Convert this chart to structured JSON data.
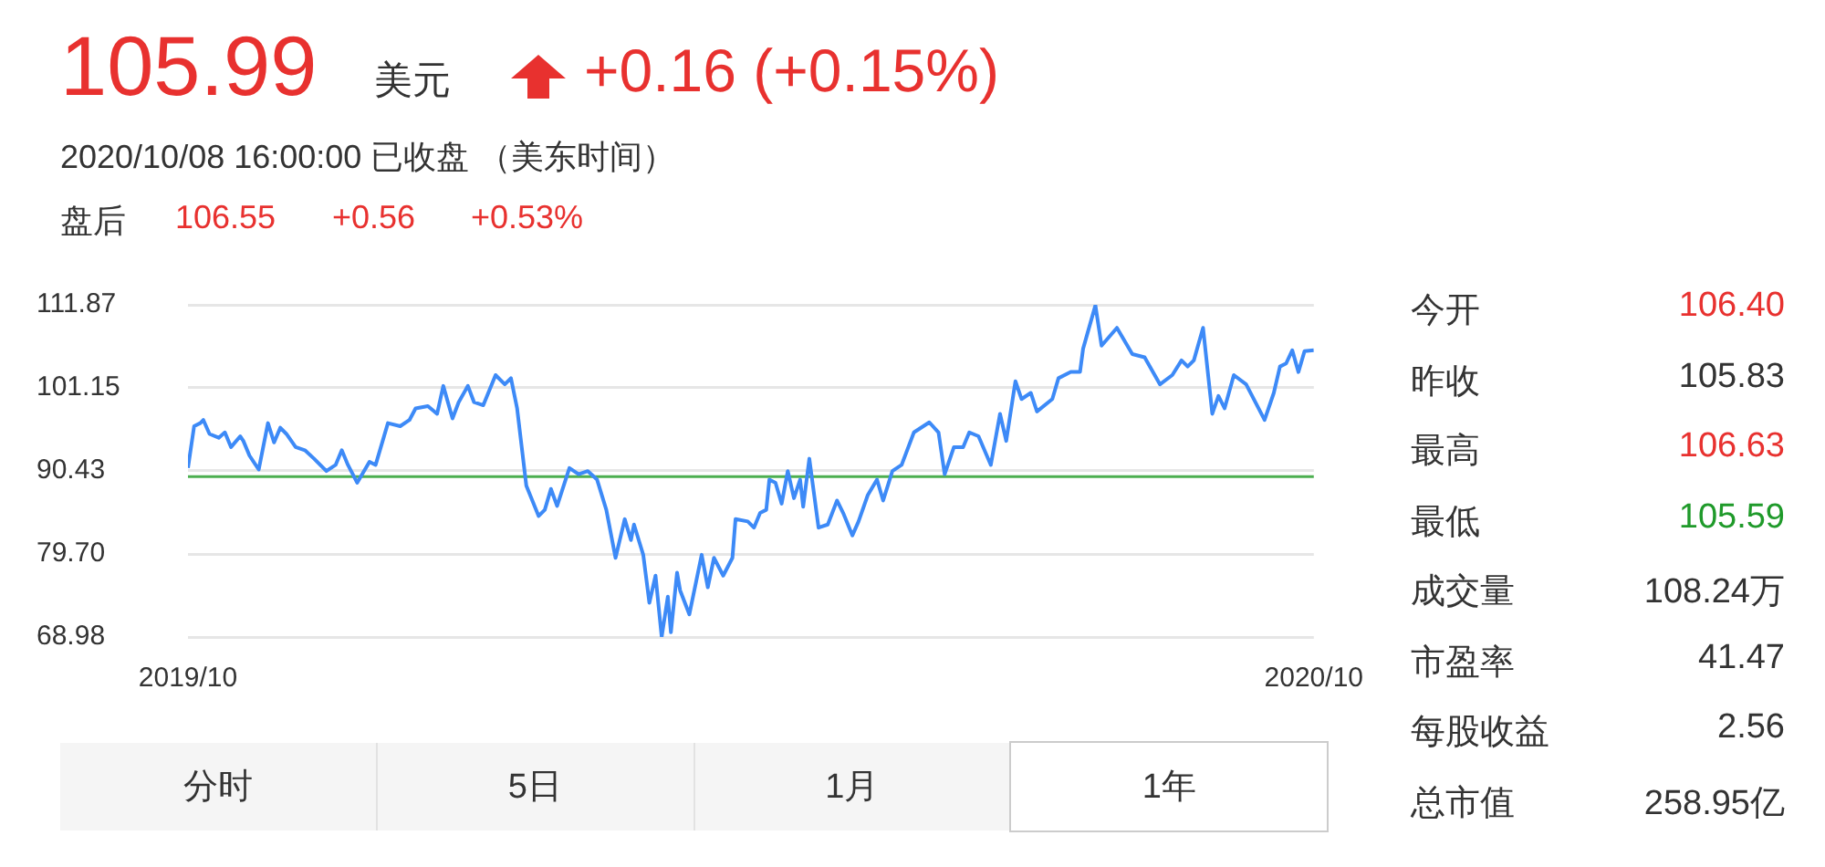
{
  "chart_data": {
    "type": "line",
    "title": "105.99",
    "subtitle": "2020/10/08 16:00:00  已收盘 （美东时间）",
    "annotations": [
      "美元",
      "+0.16 (+0.15%)",
      "盘后",
      "106.55",
      "+0.56",
      "+0.53%",
      "今开",
      "106.40",
      "昨收",
      "105.83",
      "最高",
      "106.63",
      "最低",
      "105.59",
      "成交量",
      "108.24万",
      "市盈率",
      "41.47",
      "每股收益",
      "2.56",
      "总市值",
      "258.95亿",
      "分时",
      "5日",
      "1月",
      "1年"
    ],
    "xlim": [
      "2019-10-08",
      "2020-10-08"
    ],
    "xticks": [
      {
        "value": "2019-10-08",
        "label": "2019/10"
      },
      {
        "value": "2020-10-08",
        "label": "2020/10"
      }
    ],
    "ylim": [
      68.98,
      111.87
    ],
    "yticks": [
      68.98,
      {
        "value": 79.7,
        "label": "79.70"
      },
      90.43,
      101.15,
      111.87
    ],
    "grid": "y",
    "legend": false,
    "ref_lines": [
      {
        "axis": "y",
        "value": 89.7,
        "color": "#4caf50"
      }
    ],
    "series": [
      {
        "color": "#3d8af7",
        "x": [
          "2019-10-08",
          "2019-10-10",
          "2019-10-12",
          "2019-10-13",
          "2019-10-15",
          "2019-10-18",
          "2019-10-20",
          "2019-10-22",
          "2019-10-25",
          "2019-10-26",
          "2019-10-28",
          "2019-10-31",
          "2019-11-03",
          "2019-11-05",
          "2019-11-07",
          "2019-11-09",
          "2019-11-12",
          "2019-11-15",
          "2019-11-18",
          "2019-11-22",
          "2019-11-25",
          "2019-11-27",
          "2019-11-29",
          "2019-12-02",
          "2019-12-06",
          "2019-12-08",
          "2019-12-12",
          "2019-12-16",
          "2019-12-19",
          "2019-12-21",
          "2019-12-25",
          "2019-12-28",
          "2019-12-30",
          "2020-01-02",
          "2020-01-04",
          "2020-01-07",
          "2020-01-09",
          "2020-01-12",
          "2020-01-16",
          "2020-01-19",
          "2020-01-21",
          "2020-01-23",
          "2020-01-26",
          "2020-01-30",
          "2020-02-01",
          "2020-02-03",
          "2020-02-05",
          "2020-02-09",
          "2020-02-12",
          "2020-02-15",
          "2020-02-18",
          "2020-02-21",
          "2020-02-24",
          "2020-02-27",
          "2020-02-29",
          "2020-03-01",
          "2020-03-04",
          "2020-03-06",
          "2020-03-08",
          "2020-03-10",
          "2020-03-12",
          "2020-03-13",
          "2020-03-15",
          "2020-03-16",
          "2020-03-19",
          "2020-03-23",
          "2020-03-25",
          "2020-03-27",
          "2020-03-30",
          "2020-04-02",
          "2020-04-03",
          "2020-04-07",
          "2020-04-09",
          "2020-04-11",
          "2020-04-13",
          "2020-04-14",
          "2020-04-16",
          "2020-04-18",
          "2020-04-20",
          "2020-04-22",
          "2020-04-24",
          "2020-04-25",
          "2020-04-27",
          "2020-04-30",
          "2020-05-03",
          "2020-05-06",
          "2020-05-08",
          "2020-05-11",
          "2020-05-13",
          "2020-05-16",
          "2020-05-19",
          "2020-05-21",
          "2020-05-24",
          "2020-05-27",
          "2020-05-31",
          "2020-06-05",
          "2020-06-08",
          "2020-06-10",
          "2020-06-13",
          "2020-06-16",
          "2020-06-18",
          "2020-06-21",
          "2020-06-25",
          "2020-06-28",
          "2020-06-30",
          "2020-07-03",
          "2020-07-05",
          "2020-07-08",
          "2020-07-10",
          "2020-07-15",
          "2020-07-17",
          "2020-07-21",
          "2020-07-24",
          "2020-07-25",
          "2020-07-29",
          "2020-07-31",
          "2020-08-05",
          "2020-08-10",
          "2020-08-14",
          "2020-08-19",
          "2020-08-23",
          "2020-08-26",
          "2020-08-28",
          "2020-08-30",
          "2020-09-02",
          "2020-09-05",
          "2020-09-07",
          "2020-09-09",
          "2020-09-12",
          "2020-09-16",
          "2020-09-19",
          "2020-09-22",
          "2020-09-25",
          "2020-09-27",
          "2020-09-29",
          "2020-10-01",
          "2020-10-03",
          "2020-10-05",
          "2020-10-08"
        ],
        "values": [
          90.8,
          96.2,
          96.6,
          97.0,
          95.2,
          94.7,
          95.4,
          93.5,
          94.9,
          94.3,
          92.4,
          90.6,
          96.6,
          94.1,
          96.0,
          95.2,
          93.5,
          93.1,
          92.0,
          90.4,
          91.2,
          93.1,
          91.2,
          88.9,
          91.6,
          91.2,
          96.6,
          96.2,
          97.0,
          98.5,
          98.8,
          97.8,
          101.4,
          97.2,
          99.3,
          101.4,
          99.3,
          98.9,
          102.8,
          101.6,
          102.4,
          98.5,
          88.5,
          84.6,
          85.4,
          88.1,
          85.9,
          90.8,
          90.0,
          90.4,
          89.3,
          85.4,
          79.2,
          84.2,
          81.5,
          83.5,
          79.6,
          73.4,
          76.9,
          69.0,
          74.2,
          69.6,
          77.3,
          75.0,
          71.9,
          79.6,
          75.4,
          79.2,
          76.9,
          79.2,
          84.2,
          83.9,
          83.1,
          85.0,
          85.4,
          89.3,
          88.9,
          86.2,
          90.4,
          86.9,
          89.3,
          85.8,
          92.0,
          83.1,
          83.5,
          86.6,
          85.0,
          82.1,
          83.9,
          87.3,
          89.3,
          86.6,
          90.4,
          91.2,
          95.4,
          96.7,
          95.4,
          90.0,
          93.5,
          93.5,
          95.4,
          94.9,
          91.2,
          97.8,
          94.3,
          102.0,
          99.7,
          100.5,
          98.1,
          99.7,
          102.4,
          103.2,
          103.2,
          106.2,
          111.8,
          106.6,
          108.9,
          105.5,
          105.1,
          101.6,
          102.8,
          104.7,
          103.9,
          104.7,
          108.9,
          97.8,
          100.1,
          98.5,
          102.8,
          101.6,
          99.3,
          97.0,
          100.5,
          103.9,
          104.3,
          106.0,
          103.2,
          105.9,
          106.0
        ]
      }
    ]
  }
}
